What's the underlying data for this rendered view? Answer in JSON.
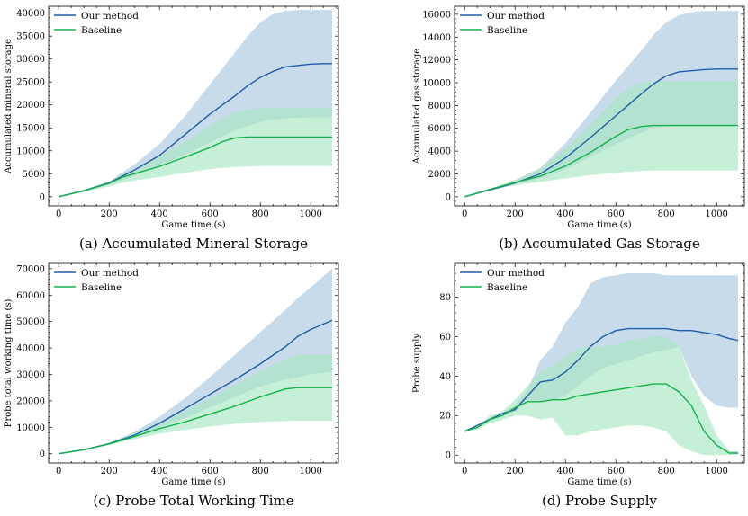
{
  "colors": {
    "ours_line": "#1f5da6",
    "ours_band": "#b3cde3",
    "base_line": "#14b14b",
    "base_band": "#a8e6c1"
  },
  "chart_data": [
    {
      "type": "area",
      "caption": "(a) Accumulated Mineral Storage",
      "xlabel": "Game time (s)",
      "ylabel": "Accumulated mineral storage",
      "xlim": [
        -40,
        1110
      ],
      "ylim": [
        -2000,
        41500
      ],
      "xticks": [
        0,
        200,
        400,
        600,
        800,
        1000
      ],
      "yticks": [
        0,
        5000,
        10000,
        15000,
        20000,
        25000,
        30000,
        35000,
        40000
      ],
      "legend_position": "top-left",
      "series": [
        {
          "name": "Our method",
          "x": [
            0,
            100,
            200,
            300,
            400,
            500,
            600,
            700,
            750,
            800,
            850,
            900,
            950,
            1000,
            1050,
            1085
          ],
          "y": [
            0,
            1300,
            3000,
            5800,
            9000,
            13500,
            18000,
            22000,
            24200,
            26000,
            27300,
            28300,
            28600,
            28900,
            29000,
            29000
          ],
          "lower": [
            0,
            1200,
            2600,
            4500,
            6700,
            9200,
            11800,
            14500,
            15500,
            16300,
            16800,
            17100,
            17200,
            17300,
            17300,
            17300
          ],
          "upper": [
            0,
            1500,
            3300,
            7000,
            11500,
            17500,
            24500,
            31500,
            35000,
            38000,
            39800,
            40500,
            40700,
            40700,
            40700,
            40700
          ]
        },
        {
          "name": "Baseline",
          "x": [
            0,
            100,
            200,
            250,
            300,
            400,
            500,
            600,
            650,
            700,
            750,
            800,
            900,
            1000,
            1085
          ],
          "y": [
            0,
            1300,
            2900,
            4200,
            5000,
            6600,
            8600,
            10700,
            12000,
            12800,
            13000,
            13000,
            13000,
            13000,
            13000
          ],
          "lower": [
            0,
            1100,
            2200,
            3000,
            3500,
            4300,
            5200,
            6000,
            6300,
            6500,
            6600,
            6700,
            6700,
            6700,
            6700
          ],
          "upper": [
            0,
            1400,
            3300,
            4900,
            6000,
            8800,
            12000,
            15500,
            17000,
            18300,
            19000,
            19300,
            19300,
            19300,
            19300
          ]
        }
      ]
    },
    {
      "type": "area",
      "caption": "(b) Accumulated Gas Storage",
      "xlabel": "Game time (s)",
      "ylabel": "Accumulated gas storage",
      "xlim": [
        -40,
        1110
      ],
      "ylim": [
        -800,
        16700
      ],
      "xticks": [
        0,
        200,
        400,
        600,
        800,
        1000
      ],
      "yticks": [
        0,
        2000,
        4000,
        6000,
        8000,
        10000,
        12000,
        14000,
        16000
      ],
      "legend_position": "top-left",
      "series": [
        {
          "name": "Our method",
          "x": [
            0,
            100,
            200,
            300,
            400,
            500,
            600,
            700,
            750,
            800,
            850,
            900,
            950,
            1000,
            1085
          ],
          "y": [
            0,
            600,
            1200,
            2000,
            3400,
            5200,
            7100,
            9000,
            9900,
            10600,
            10950,
            11050,
            11150,
            11200,
            11200
          ],
          "lower": [
            0,
            550,
            1050,
            1600,
            2400,
            3500,
            4600,
            5600,
            6000,
            6200,
            6250,
            6250,
            6250,
            6250,
            6250
          ],
          "upper": [
            0,
            650,
            1400,
            2500,
            4700,
            7400,
            10200,
            12800,
            14200,
            15300,
            15900,
            16200,
            16300,
            16300,
            16300
          ]
        },
        {
          "name": "Baseline",
          "x": [
            0,
            100,
            200,
            300,
            400,
            500,
            600,
            650,
            700,
            750,
            800,
            900,
            1000,
            1085
          ],
          "y": [
            0,
            650,
            1250,
            1800,
            2700,
            3900,
            5300,
            5900,
            6150,
            6250,
            6250,
            6250,
            6250,
            6250
          ],
          "lower": [
            0,
            550,
            1000,
            1300,
            1600,
            1900,
            2100,
            2200,
            2250,
            2300,
            2300,
            2300,
            2300,
            2300
          ],
          "upper": [
            0,
            700,
            1500,
            2500,
            4200,
            6300,
            8600,
            9500,
            10000,
            10100,
            10150,
            10150,
            10150,
            10150
          ]
        }
      ]
    },
    {
      "type": "area",
      "caption": "(c) Probe Total Working Time",
      "xlabel": "Game time (s)",
      "ylabel": "Probe total working time (s)",
      "xlim": [
        -40,
        1110
      ],
      "ylim": [
        -3500,
        72000
      ],
      "xticks": [
        0,
        200,
        400,
        600,
        800,
        1000
      ],
      "yticks": [
        0,
        10000,
        20000,
        30000,
        40000,
        50000,
        60000,
        70000
      ],
      "legend_position": "top-left",
      "series": [
        {
          "name": "Our method",
          "x": [
            0,
            100,
            200,
            300,
            400,
            500,
            600,
            700,
            800,
            900,
            950,
            1000,
            1085
          ],
          "y": [
            0,
            1500,
            3800,
            7000,
            11500,
            17000,
            22500,
            28000,
            34000,
            40500,
            44500,
            47000,
            50500
          ],
          "lower": [
            0,
            1400,
            3400,
            6200,
            9800,
            13500,
            17500,
            21500,
            25500,
            28000,
            29000,
            30000,
            31000
          ],
          "upper": [
            0,
            1600,
            4100,
            8200,
            14000,
            21000,
            29000,
            37500,
            46000,
            54500,
            59000,
            63000,
            70000
          ]
        },
        {
          "name": "Baseline",
          "x": [
            0,
            100,
            200,
            300,
            400,
            500,
            600,
            700,
            800,
            900,
            950,
            1000,
            1085
          ],
          "y": [
            0,
            1500,
            3700,
            6500,
            9500,
            12000,
            15000,
            18000,
            21500,
            24500,
            25000,
            25000,
            25000
          ],
          "lower": [
            0,
            1400,
            3300,
            5500,
            7600,
            9000,
            10300,
            11300,
            12000,
            12400,
            12500,
            12500,
            12500
          ],
          "upper": [
            0,
            1600,
            4100,
            7800,
            12000,
            16000,
            21000,
            26000,
            31000,
            36000,
            37500,
            37500,
            37500
          ]
        }
      ]
    },
    {
      "type": "area",
      "caption": "(d) Probe Supply",
      "xlabel": "Game time (s)",
      "ylabel": "Probe supply",
      "xlim": [
        -40,
        1110
      ],
      "ylim": [
        -4,
        97
      ],
      "xticks": [
        0,
        200,
        400,
        600,
        800,
        1000
      ],
      "yticks": [
        0,
        20,
        40,
        60,
        80
      ],
      "legend_position": "top-left",
      "series": [
        {
          "name": "Our method",
          "x": [
            0,
            50,
            100,
            150,
            200,
            250,
            300,
            350,
            400,
            450,
            500,
            550,
            600,
            650,
            700,
            750,
            800,
            850,
            900,
            950,
            1000,
            1050,
            1085
          ],
          "y": [
            12,
            15,
            18,
            21,
            23,
            30,
            37,
            38,
            42,
            48,
            55,
            60,
            63,
            64,
            64,
            64,
            64,
            63,
            63,
            62,
            61,
            59,
            58
          ],
          "lower": [
            12,
            15,
            17,
            20,
            22,
            27,
            27,
            28,
            30,
            35,
            40,
            44,
            46,
            48,
            50,
            52,
            53,
            55,
            40,
            30,
            25,
            24,
            24
          ],
          "upper": [
            12,
            15,
            19,
            22,
            25,
            33,
            48,
            55,
            67,
            75,
            87,
            90,
            91,
            92,
            92,
            92,
            91,
            91,
            91,
            91,
            91,
            91,
            91
          ]
        },
        {
          "name": "Baseline",
          "x": [
            0,
            50,
            100,
            150,
            200,
            250,
            300,
            350,
            400,
            450,
            500,
            550,
            600,
            650,
            700,
            750,
            800,
            850,
            900,
            950,
            1000,
            1050,
            1085
          ],
          "y": [
            12,
            14,
            18,
            20,
            24,
            27,
            27,
            28,
            28,
            30,
            31,
            32,
            33,
            34,
            35,
            36,
            36,
            32,
            25,
            12,
            5,
            1,
            1
          ],
          "lower": [
            12,
            13,
            16,
            18,
            20,
            20,
            18,
            19,
            10,
            10,
            12,
            13,
            14,
            15,
            15,
            14,
            12,
            5,
            2,
            0,
            0,
            0,
            0
          ],
          "upper": [
            12,
            15,
            20,
            22,
            28,
            35,
            42,
            45,
            50,
            54,
            55,
            55,
            56,
            58,
            59,
            60,
            60,
            55,
            38,
            25,
            10,
            2,
            2
          ]
        }
      ]
    }
  ]
}
